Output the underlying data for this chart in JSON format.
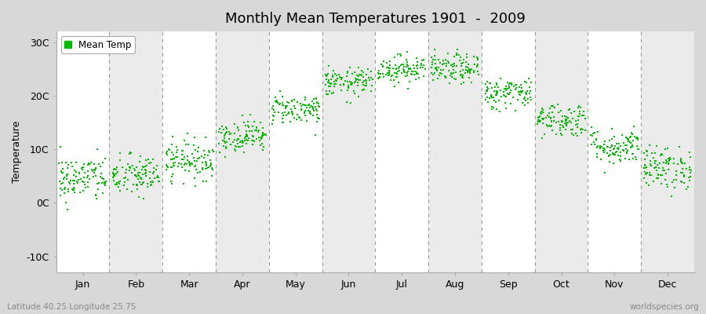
{
  "title": "Monthly Mean Temperatures 1901  -  2009",
  "ylabel": "Temperature",
  "xlabel_months": [
    "Jan",
    "Feb",
    "Mar",
    "Apr",
    "May",
    "Jun",
    "Jul",
    "Aug",
    "Sep",
    "Oct",
    "Nov",
    "Dec"
  ],
  "yticks": [
    -10,
    0,
    10,
    20,
    30
  ],
  "ytick_labels": [
    "-10C",
    "0C",
    "10C",
    "20C",
    "30C"
  ],
  "ylim": [
    -13,
    32
  ],
  "dot_color": "#00bb00",
  "bg_color": "#d8d8d8",
  "legend_label": "Mean Temp",
  "bottom_left": "Latitude 40.25 Longitude 25.75",
  "bottom_right": "worldspecies.org",
  "mean_temps": [
    4.5,
    5.0,
    8.0,
    12.5,
    17.5,
    22.5,
    25.0,
    25.0,
    20.5,
    15.5,
    10.5,
    6.5
  ],
  "std_temps": [
    2.2,
    2.0,
    1.8,
    1.5,
    1.4,
    1.3,
    1.3,
    1.4,
    1.5,
    1.6,
    1.7,
    2.0
  ],
  "n_years": 109,
  "dashed_line_color": "#999999",
  "plot_bg_color": "#ffffff",
  "alt_bg_color": "#ebebeb"
}
